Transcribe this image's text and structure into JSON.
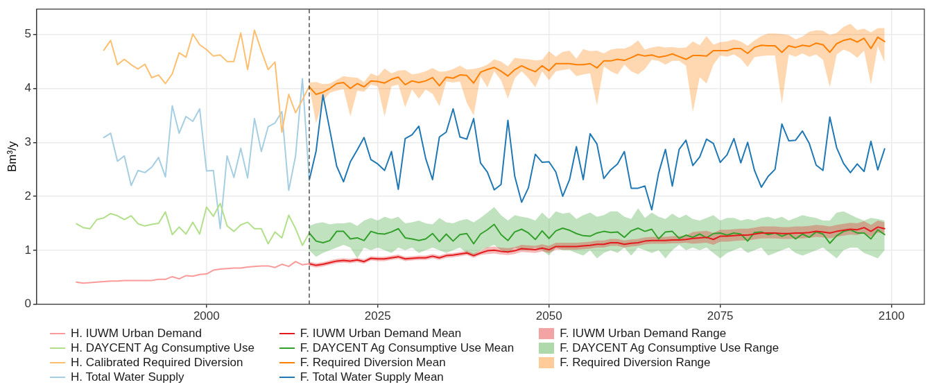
{
  "chart_data": {
    "type": "line",
    "ylabel": "Bm³/y",
    "xlim": [
      1975.2,
      2104.8
    ],
    "xticks": [
      2000,
      2025,
      2050,
      2075,
      2100
    ],
    "ylim": [
      0,
      5.47
    ],
    "yticks": [
      0,
      1,
      2,
      3,
      4,
      5
    ],
    "grid": true,
    "legend": "bottom",
    "marker": "none",
    "line_style": "solid",
    "x": [
      2015,
      2016,
      2017,
      2018,
      2019,
      2020,
      2021,
      2022,
      2023,
      2024,
      2025,
      2026,
      2027,
      2028,
      2029,
      2030,
      2031,
      2032,
      2033,
      2034,
      2035,
      2036,
      2037,
      2038,
      2039,
      2040,
      2041,
      2042,
      2043,
      2044,
      2045,
      2046,
      2047,
      2048,
      2049,
      2050,
      2051,
      2052,
      2053,
      2054,
      2055,
      2056,
      2057,
      2058,
      2059,
      2060,
      2061,
      2062,
      2063,
      2064,
      2065,
      2066,
      2067,
      2068,
      2069,
      2070,
      2071,
      2072,
      2073,
      2074,
      2075,
      2076,
      2077,
      2078,
      2079,
      2080,
      2081,
      2082,
      2083,
      2084,
      2085,
      2086,
      2087,
      2088,
      2089,
      2090,
      2091,
      2092,
      2093,
      2094,
      2095,
      2096,
      2097,
      2098,
      2099
    ],
    "ref_lines": [
      {
        "axis": "x",
        "value": 2015,
        "color": "#333333",
        "line_style": "dashed"
      }
    ],
    "annotations": [
      "F. IUWM Urban Demand Range",
      "F. DAYCENT Ag Consumptive Use Range",
      "F. Required Diversion Range"
    ],
    "series": [
      {
        "name": "H. IUWM Urban Demand",
        "color": "#fb9a99",
        "x": [
          1981,
          1982,
          1983,
          1984,
          1985,
          1986,
          1987,
          1988,
          1989,
          1990,
          1991,
          1992,
          1993,
          1994,
          1995,
          1996,
          1997,
          1998,
          1999,
          2000,
          2001,
          2002,
          2003,
          2004,
          2005,
          2006,
          2007,
          2008,
          2009,
          2010,
          2011,
          2012,
          2013,
          2014,
          2015
        ],
        "values": [
          0.41,
          0.39,
          0.4,
          0.41,
          0.42,
          0.43,
          0.43,
          0.44,
          0.44,
          0.44,
          0.44,
          0.44,
          0.46,
          0.46,
          0.51,
          0.47,
          0.53,
          0.52,
          0.55,
          0.56,
          0.63,
          0.65,
          0.66,
          0.67,
          0.67,
          0.69,
          0.7,
          0.71,
          0.71,
          0.68,
          0.74,
          0.7,
          0.79,
          0.73,
          0.75
        ]
      },
      {
        "name": "H. DAYCENT Ag Consumptive Use",
        "color": "#b2df8a",
        "x": [
          1981,
          1982,
          1983,
          1984,
          1985,
          1986,
          1987,
          1988,
          1989,
          1990,
          1991,
          1992,
          1993,
          1994,
          1995,
          1996,
          1997,
          1998,
          1999,
          2000,
          2001,
          2002,
          2003,
          2004,
          2005,
          2006,
          2007,
          2008,
          2009,
          2010,
          2011,
          2012,
          2013,
          2014,
          2015
        ],
        "values": [
          1.49,
          1.42,
          1.4,
          1.57,
          1.6,
          1.68,
          1.64,
          1.57,
          1.64,
          1.49,
          1.45,
          1.48,
          1.5,
          1.71,
          1.29,
          1.43,
          1.3,
          1.52,
          1.3,
          1.8,
          1.63,
          1.87,
          1.45,
          1.35,
          1.47,
          1.52,
          1.4,
          1.4,
          1.12,
          1.34,
          1.23,
          1.65,
          1.4,
          1.09,
          1.32
        ]
      },
      {
        "name": "H. Calibrated Required Diversion",
        "color": "#fdbf6f",
        "x": [
          1985,
          1986,
          1987,
          1988,
          1989,
          1990,
          1991,
          1992,
          1993,
          1994,
          1995,
          1996,
          1997,
          1998,
          1999,
          2000,
          2001,
          2002,
          2003,
          2004,
          2005,
          2006,
          2007,
          2008,
          2009,
          2010,
          2011,
          2012,
          2013,
          2014,
          2015
        ],
        "values": [
          4.71,
          4.89,
          4.44,
          4.54,
          4.44,
          4.36,
          4.45,
          4.2,
          4.25,
          4.09,
          4.27,
          4.66,
          4.58,
          5.01,
          4.81,
          4.72,
          4.6,
          4.62,
          4.5,
          4.5,
          5.03,
          4.35,
          5.08,
          4.7,
          4.35,
          4.49,
          3.19,
          3.89,
          3.55,
          3.79,
          4.04
        ]
      },
      {
        "name": "H. Total Water Supply",
        "color": "#a6cee3",
        "x": [
          1985,
          1986,
          1987,
          1988,
          1989,
          1990,
          1991,
          1992,
          1993,
          1994,
          1995,
          1996,
          1997,
          1998,
          1999,
          2000,
          2001,
          2002,
          2003,
          2004,
          2005,
          2006,
          2007,
          2008,
          2009,
          2010,
          2011,
          2012,
          2013,
          2014,
          2015
        ],
        "values": [
          3.09,
          3.17,
          2.65,
          2.75,
          2.2,
          2.48,
          2.44,
          2.54,
          2.72,
          2.36,
          3.68,
          3.17,
          3.48,
          3.39,
          3.62,
          2.47,
          2.48,
          1.4,
          2.75,
          2.35,
          2.89,
          2.34,
          3.44,
          2.83,
          3.29,
          3.36,
          3.57,
          2.11,
          2.75,
          4.18,
          2.3
        ]
      },
      {
        "name": "F. IUWM Urban Demand Mean",
        "color": "#e31a1c",
        "values": [
          0.75,
          0.72,
          0.74,
          0.77,
          0.8,
          0.81,
          0.8,
          0.82,
          0.79,
          0.85,
          0.84,
          0.84,
          0.86,
          0.88,
          0.84,
          0.85,
          0.86,
          0.86,
          0.89,
          0.86,
          0.9,
          0.91,
          0.93,
          0.95,
          0.9,
          0.95,
          0.99,
          1.0,
          0.98,
          0.97,
          0.99,
          1.03,
          1.02,
          1.01,
          1.04,
          1.01,
          1.07,
          1.07,
          1.07,
          1.07,
          1.08,
          1.09,
          1.11,
          1.11,
          1.14,
          1.14,
          1.11,
          1.13,
          1.14,
          1.17,
          1.18,
          1.18,
          1.18,
          1.19,
          1.19,
          1.2,
          1.22,
          1.23,
          1.24,
          1.2,
          1.26,
          1.26,
          1.27,
          1.28,
          1.28,
          1.3,
          1.32,
          1.32,
          1.32,
          1.31,
          1.31,
          1.32,
          1.32,
          1.33,
          1.35,
          1.34,
          1.32,
          1.35,
          1.37,
          1.39,
          1.38,
          1.42,
          1.35,
          1.43,
          1.4
        ],
        "lower": [
          0.71,
          0.68,
          0.7,
          0.73,
          0.76,
          0.77,
          0.76,
          0.78,
          0.75,
          0.81,
          0.8,
          0.8,
          0.82,
          0.84,
          0.8,
          0.81,
          0.82,
          0.82,
          0.85,
          0.82,
          0.86,
          0.87,
          0.89,
          0.91,
          0.86,
          0.91,
          0.93,
          0.94,
          0.92,
          0.91,
          0.93,
          0.97,
          0.96,
          0.95,
          0.98,
          0.95,
          1.01,
          1.01,
          1.01,
          1.01,
          1.02,
          1.03,
          1.05,
          1.05,
          1.08,
          1.08,
          1.05,
          1.07,
          1.08,
          1.11,
          1.12,
          1.12,
          1.12,
          1.13,
          1.13,
          1.14,
          1.12,
          1.13,
          1.14,
          1.1,
          1.16,
          1.16,
          1.17,
          1.18,
          1.18,
          1.2,
          1.22,
          1.22,
          1.22,
          1.21,
          1.21,
          1.22,
          1.22,
          1.23,
          1.25,
          1.24,
          1.22,
          1.25,
          1.27,
          1.29,
          1.28,
          1.32,
          1.25,
          1.33,
          1.3
        ],
        "upper": [
          0.79,
          0.76,
          0.78,
          0.81,
          0.84,
          0.85,
          0.84,
          0.86,
          0.83,
          0.89,
          0.88,
          0.88,
          0.9,
          0.92,
          0.88,
          0.89,
          0.9,
          0.9,
          0.93,
          0.9,
          0.94,
          0.95,
          0.97,
          0.99,
          0.94,
          0.99,
          1.06,
          1.07,
          1.05,
          1.04,
          1.06,
          1.1,
          1.09,
          1.08,
          1.11,
          1.08,
          1.14,
          1.14,
          1.14,
          1.14,
          1.15,
          1.16,
          1.18,
          1.18,
          1.21,
          1.21,
          1.18,
          1.2,
          1.21,
          1.24,
          1.25,
          1.25,
          1.25,
          1.26,
          1.26,
          1.27,
          1.34,
          1.35,
          1.36,
          1.32,
          1.38,
          1.38,
          1.39,
          1.4,
          1.4,
          1.42,
          1.44,
          1.44,
          1.44,
          1.43,
          1.43,
          1.44,
          1.44,
          1.45,
          1.47,
          1.46,
          1.44,
          1.47,
          1.49,
          1.51,
          1.5,
          1.54,
          1.47,
          1.55,
          1.52
        ]
      },
      {
        "name": "F. DAYCENT Ag Consumptive Use Mean",
        "color": "#33a02c",
        "values": [
          1.32,
          1.17,
          1.14,
          1.18,
          1.35,
          1.35,
          1.21,
          1.23,
          1.18,
          1.35,
          1.31,
          1.3,
          1.34,
          1.4,
          1.23,
          1.21,
          1.18,
          1.21,
          1.31,
          1.16,
          1.3,
          1.17,
          1.29,
          1.31,
          1.12,
          1.3,
          1.38,
          1.48,
          1.29,
          1.18,
          1.34,
          1.39,
          1.32,
          1.2,
          1.36,
          1.22,
          1.36,
          1.41,
          1.37,
          1.31,
          1.27,
          1.26,
          1.32,
          1.35,
          1.33,
          1.34,
          1.24,
          1.36,
          1.41,
          1.35,
          1.39,
          1.21,
          1.34,
          1.35,
          1.22,
          1.28,
          1.24,
          1.3,
          1.23,
          1.31,
          1.32,
          1.28,
          1.32,
          1.3,
          1.17,
          1.33,
          1.34,
          1.29,
          1.32,
          1.26,
          1.31,
          1.21,
          1.3,
          1.24,
          1.34,
          1.3,
          1.13,
          1.27,
          1.35,
          1.38,
          1.32,
          1.32,
          1.21,
          1.38,
          1.29
        ],
        "lower": [
          1.0,
          0.88,
          0.95,
          1.0,
          1.05,
          1.1,
          1.05,
          0.85,
          1.05,
          1.0,
          1.05,
          1.0,
          0.95,
          1.05,
          1.0,
          1.05,
          0.95,
          1.0,
          1.05,
          1.0,
          0.95,
          1.0,
          1.05,
          0.95,
          0.9,
          1.0,
          1.05,
          1.1,
          1.0,
          0.95,
          1.05,
          1.0,
          1.0,
          1.05,
          1.0,
          0.9,
          1.05,
          1.0,
          1.0,
          0.95,
          0.9,
          1.0,
          0.85,
          0.95,
          1.0,
          0.95,
          1.05,
          0.9,
          1.05,
          1.0,
          0.95,
          1.0,
          0.85,
          1.0,
          1.1,
          1.0,
          1.05,
          1.0,
          1.05,
          0.95,
          0.85,
          0.95,
          1.0,
          1.05,
          0.95,
          1.0,
          1.05,
          0.9,
          0.95,
          1.0,
          1.05,
          0.95,
          0.9,
          0.95,
          1.0,
          1.05,
          0.95,
          0.85,
          1.0,
          1.05,
          1.05,
          0.95,
          0.9,
          0.85,
          1.0
        ],
        "upper": [
          1.45,
          1.5,
          1.52,
          1.48,
          1.5,
          1.5,
          1.52,
          1.45,
          1.55,
          1.6,
          1.55,
          1.62,
          1.58,
          1.62,
          1.5,
          1.52,
          1.55,
          1.5,
          1.48,
          1.6,
          1.52,
          1.5,
          1.55,
          1.58,
          1.52,
          1.6,
          1.7,
          1.8,
          1.65,
          1.55,
          1.65,
          1.62,
          1.6,
          1.55,
          1.7,
          1.58,
          1.72,
          1.68,
          1.7,
          1.58,
          1.65,
          1.7,
          1.62,
          1.65,
          1.72,
          1.72,
          1.62,
          1.58,
          1.78,
          1.6,
          1.7,
          1.62,
          1.58,
          1.68,
          1.6,
          1.66,
          1.58,
          1.55,
          1.6,
          1.65,
          1.55,
          1.6,
          1.6,
          1.55,
          1.58,
          1.55,
          1.6,
          1.62,
          1.58,
          1.62,
          1.55,
          1.6,
          1.65,
          1.62,
          1.6,
          1.55,
          1.55,
          1.7,
          1.72,
          1.66,
          1.6,
          1.55,
          1.6,
          1.58,
          1.55
        ]
      },
      {
        "name": "F. Required Diversion Mean",
        "color": "#ff7f00",
        "values": [
          4.03,
          3.89,
          3.93,
          4.0,
          4.09,
          4.11,
          4.0,
          4.09,
          4.03,
          4.14,
          4.13,
          4.1,
          4.17,
          4.21,
          4.07,
          4.14,
          4.11,
          4.14,
          4.2,
          4.05,
          4.21,
          4.19,
          4.25,
          4.24,
          4.1,
          4.3,
          4.35,
          4.39,
          4.32,
          4.23,
          4.35,
          4.42,
          4.36,
          4.31,
          4.42,
          4.33,
          4.46,
          4.46,
          4.46,
          4.44,
          4.44,
          4.46,
          4.38,
          4.51,
          4.51,
          4.54,
          4.52,
          4.57,
          4.63,
          4.6,
          4.62,
          4.58,
          4.6,
          4.64,
          4.59,
          4.54,
          4.61,
          4.61,
          4.6,
          4.7,
          4.7,
          4.7,
          4.74,
          4.74,
          4.65,
          4.76,
          4.8,
          4.79,
          4.79,
          4.67,
          4.79,
          4.76,
          4.8,
          4.78,
          4.84,
          4.81,
          4.67,
          4.83,
          4.89,
          4.92,
          4.86,
          4.93,
          4.74,
          4.95,
          4.87
        ],
        "lower": [
          4.03,
          3.35,
          3.77,
          3.92,
          3.96,
          3.99,
          3.48,
          3.96,
          3.94,
          4.07,
          4.04,
          3.48,
          4.04,
          4.07,
          3.65,
          3.98,
          3.81,
          3.98,
          3.9,
          3.67,
          4.13,
          4.11,
          4.13,
          3.73,
          3.5,
          4.23,
          4.02,
          4.32,
          4.15,
          3.81,
          4.19,
          4.32,
          4.19,
          4.02,
          4.32,
          4.15,
          4.32,
          4.34,
          4.36,
          4.23,
          4.26,
          4.28,
          3.69,
          4.41,
          4.32,
          4.26,
          4.44,
          4.32,
          4.26,
          4.36,
          4.53,
          4.51,
          4.44,
          4.51,
          4.51,
          4.42,
          3.56,
          4.21,
          4.09,
          4.44,
          4.61,
          4.59,
          4.63,
          4.55,
          4.4,
          4.58,
          4.6,
          4.61,
          4.61,
          3.71,
          4.63,
          4.59,
          4.65,
          4.59,
          4.63,
          4.53,
          4.02,
          4.63,
          4.72,
          4.67,
          4.57,
          4.7,
          4.07,
          4.78,
          4.48
        ],
        "upper": [
          4.11,
          4.12,
          4.08,
          4.09,
          4.16,
          4.23,
          4.21,
          4.2,
          4.12,
          4.28,
          4.23,
          4.37,
          4.28,
          4.33,
          4.34,
          4.26,
          4.28,
          4.32,
          4.38,
          4.31,
          4.32,
          4.36,
          4.42,
          4.35,
          4.36,
          4.39,
          4.44,
          4.54,
          4.5,
          4.41,
          4.57,
          4.55,
          4.54,
          4.52,
          4.53,
          4.69,
          4.59,
          4.68,
          4.7,
          4.55,
          4.73,
          4.69,
          4.7,
          4.65,
          4.72,
          4.74,
          4.74,
          4.79,
          4.89,
          4.72,
          4.76,
          4.78,
          4.76,
          4.77,
          4.75,
          4.76,
          4.87,
          4.8,
          4.97,
          4.81,
          4.86,
          4.87,
          4.91,
          4.87,
          4.79,
          4.89,
          4.97,
          5.02,
          5.02,
          5.01,
          4.99,
          4.91,
          4.96,
          5.05,
          5.08,
          5.07,
          4.99,
          5.03,
          5.14,
          5.2,
          5.08,
          5.11,
          5.04,
          5.12,
          5.12
        ]
      },
      {
        "name": "F. Total Water Supply Mean",
        "color": "#1f78b4",
        "values": [
          2.3,
          2.84,
          3.88,
          3.23,
          2.56,
          2.27,
          2.64,
          2.86,
          3.09,
          2.68,
          2.6,
          2.48,
          2.83,
          2.13,
          3.07,
          3.14,
          3.3,
          2.7,
          2.31,
          3.1,
          3.19,
          3.62,
          3.1,
          3.06,
          3.44,
          2.62,
          2.45,
          2.12,
          2.22,
          3.41,
          2.37,
          1.89,
          2.16,
          2.78,
          2.63,
          2.64,
          2.45,
          2.0,
          2.31,
          2.92,
          2.31,
          3.16,
          2.97,
          2.33,
          2.49,
          2.6,
          2.83,
          2.15,
          2.15,
          2.19,
          1.75,
          2.43,
          2.87,
          2.19,
          2.87,
          3.04,
          2.57,
          2.73,
          3.06,
          2.98,
          2.63,
          2.77,
          3.07,
          2.62,
          3.0,
          2.48,
          2.17,
          2.37,
          2.5,
          3.34,
          3.03,
          3.04,
          3.21,
          2.98,
          2.58,
          2.48,
          3.47,
          2.9,
          2.61,
          2.44,
          2.6,
          2.46,
          3.02,
          2.49,
          2.88
        ]
      }
    ]
  }
}
